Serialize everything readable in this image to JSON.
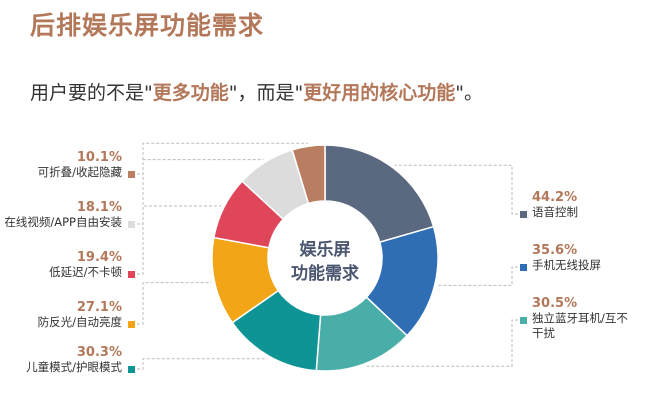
{
  "chart_data": {
    "type": "donut",
    "title": "后排娱乐屏功能需求",
    "subtitle_parts": [
      {
        "text": "用户要的不是\"",
        "color": "#333333"
      },
      {
        "text": "更多功能",
        "color": "#b3785a"
      },
      {
        "text": "\"，而是\"",
        "color": "#333333"
      },
      {
        "text": "更好用的核心功能",
        "color": "#b3785a"
      },
      {
        "text": "\"。",
        "color": "#333333"
      }
    ],
    "center_label": [
      "娱乐屏",
      "功能需求"
    ],
    "categories": [
      "语音控制",
      "手机无线投屏",
      "独立蓝牙耳机/互不干扰",
      "儿童模式/护眼模式",
      "防反光/自动亮度",
      "低延迟/不卡顿",
      "在线视频/APP自由安装",
      "可折叠/收起隐藏"
    ],
    "values": [
      44.2,
      35.6,
      30.5,
      30.3,
      27.1,
      19.4,
      18.1,
      10.1
    ],
    "value_labels": [
      "44.2%",
      "35.6%",
      "30.5%",
      "30.3%",
      "27.1%",
      "19.4%",
      "18.1%",
      "10.1%"
    ],
    "colors": [
      "#5a6880",
      "#2f6db5",
      "#4aaea8",
      "#0f9496",
      "#f2a516",
      "#e0465a",
      "#dcdcdc",
      "#b97e62"
    ]
  }
}
